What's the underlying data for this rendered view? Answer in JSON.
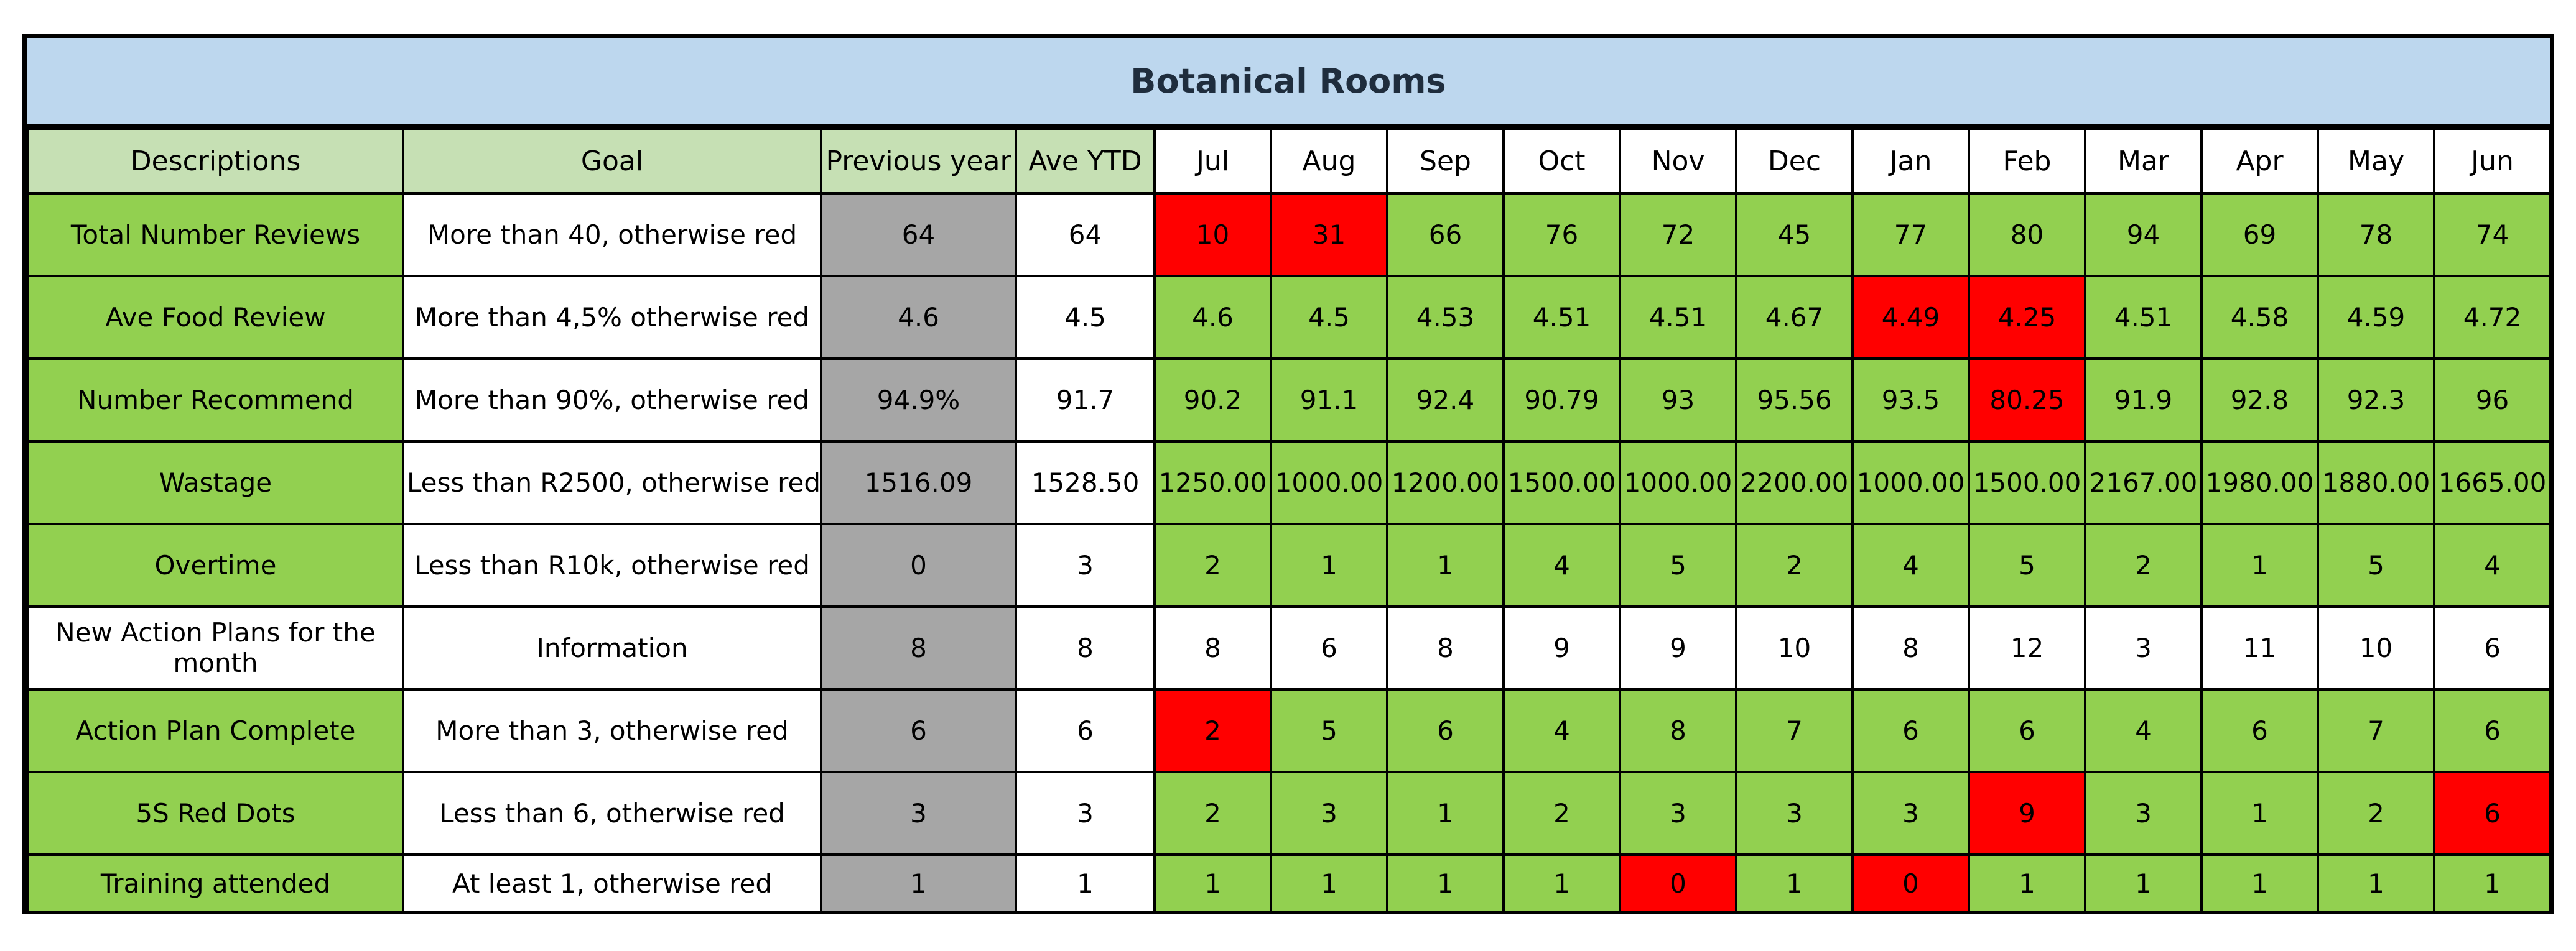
{
  "title": "Botanical Rooms",
  "headers": [
    "Descriptions",
    "Goal",
    "Previous year",
    "Ave YTD",
    "Jul",
    "Aug",
    "Sep",
    "Oct",
    "Nov",
    "Dec",
    "Jan",
    "Feb",
    "Mar",
    "Apr",
    "May",
    "Jun"
  ],
  "colors": {
    "title_bg": "#bdd7ee",
    "header_green": "#c6e0b4",
    "ok_green": "#92d050",
    "alert_red": "#ff0000",
    "previous_year_gray": "#a6a6a6"
  },
  "rows": [
    {
      "description": "Total Number Reviews",
      "goal": "More than 40, otherwise red",
      "previous_year": "64",
      "ave_ytd": "64",
      "months": [
        "10",
        "31",
        "66",
        "76",
        "72",
        "45",
        "77",
        "80",
        "94",
        "69",
        "78",
        "74"
      ],
      "status": [
        "red",
        "red",
        "green",
        "green",
        "green",
        "green",
        "green",
        "green",
        "green",
        "green",
        "green",
        "green"
      ]
    },
    {
      "description": "Ave Food Review",
      "goal": "More than 4,5% otherwise red",
      "previous_year": "4.6",
      "ave_ytd": "4.5",
      "months": [
        "4.6",
        "4.5",
        "4.53",
        "4.51",
        "4.51",
        "4.67",
        "4.49",
        "4.25",
        "4.51",
        "4.58",
        "4.59",
        "4.72"
      ],
      "status": [
        "green",
        "green",
        "green",
        "green",
        "green",
        "green",
        "red",
        "red",
        "green",
        "green",
        "green",
        "green"
      ]
    },
    {
      "description": "Number Recommend",
      "goal": "More than 90%, otherwise red",
      "previous_year": "94.9%",
      "ave_ytd": "91.7",
      "months": [
        "90.2",
        "91.1",
        "92.4",
        "90.79",
        "93",
        "95.56",
        "93.5",
        "80.25",
        "91.9",
        "92.8",
        "92.3",
        "96"
      ],
      "status": [
        "green",
        "green",
        "green",
        "green",
        "green",
        "green",
        "green",
        "red",
        "green",
        "green",
        "green",
        "green"
      ]
    },
    {
      "description": "Wastage",
      "goal": "Less than R2500, otherwise red",
      "previous_year": "1516.09",
      "ave_ytd": "1528.50",
      "months": [
        "1250.00",
        "1000.00",
        "1200.00",
        "1500.00",
        "1000.00",
        "2200.00",
        "1000.00",
        "1500.00",
        "2167.00",
        "1980.00",
        "1880.00",
        "1665.00"
      ],
      "status": [
        "green",
        "green",
        "green",
        "green",
        "green",
        "green",
        "green",
        "green",
        "green",
        "green",
        "green",
        "green"
      ]
    },
    {
      "description": "Overtime",
      "goal": "Less than R10k, otherwise red",
      "previous_year": "0",
      "ave_ytd": "3",
      "months": [
        "2",
        "1",
        "1",
        "4",
        "5",
        "2",
        "4",
        "5",
        "2",
        "1",
        "5",
        "4"
      ],
      "status": [
        "green",
        "green",
        "green",
        "green",
        "green",
        "green",
        "green",
        "green",
        "green",
        "green",
        "green",
        "green"
      ]
    },
    {
      "description": "New Action Plans for the month",
      "goal": "Information",
      "previous_year": "8",
      "ave_ytd": "8",
      "months": [
        "8",
        "6",
        "8",
        "9",
        "9",
        "10",
        "8",
        "12",
        "3",
        "11",
        "10",
        "6"
      ],
      "status": [
        "white",
        "white",
        "white",
        "white",
        "white",
        "white",
        "white",
        "white",
        "white",
        "white",
        "white",
        "white"
      ],
      "info_row": true
    },
    {
      "description": "Action Plan Complete",
      "goal": "More than 3, otherwise red",
      "previous_year": "6",
      "ave_ytd": "6",
      "months": [
        "2",
        "5",
        "6",
        "4",
        "8",
        "7",
        "6",
        "6",
        "4",
        "6",
        "7",
        "6"
      ],
      "status": [
        "red",
        "green",
        "green",
        "green",
        "green",
        "green",
        "green",
        "green",
        "green",
        "green",
        "green",
        "green"
      ]
    },
    {
      "description": "5S Red Dots",
      "goal": "Less than 6, otherwise red",
      "previous_year": "3",
      "ave_ytd": "3",
      "months": [
        "2",
        "3",
        "1",
        "2",
        "3",
        "3",
        "3",
        "9",
        "3",
        "1",
        "2",
        "6"
      ],
      "status": [
        "green",
        "green",
        "green",
        "green",
        "green",
        "green",
        "green",
        "red",
        "green",
        "green",
        "green",
        "red"
      ]
    },
    {
      "description": "Training attended",
      "goal": "At least 1, otherwise red",
      "previous_year": "1",
      "ave_ytd": "1",
      "months": [
        "1",
        "1",
        "1",
        "1",
        "0",
        "1",
        "0",
        "1",
        "1",
        "1",
        "1",
        "1"
      ],
      "status": [
        "green",
        "green",
        "green",
        "green",
        "red",
        "green",
        "red",
        "green",
        "green",
        "green",
        "green",
        "green"
      ]
    }
  ]
}
